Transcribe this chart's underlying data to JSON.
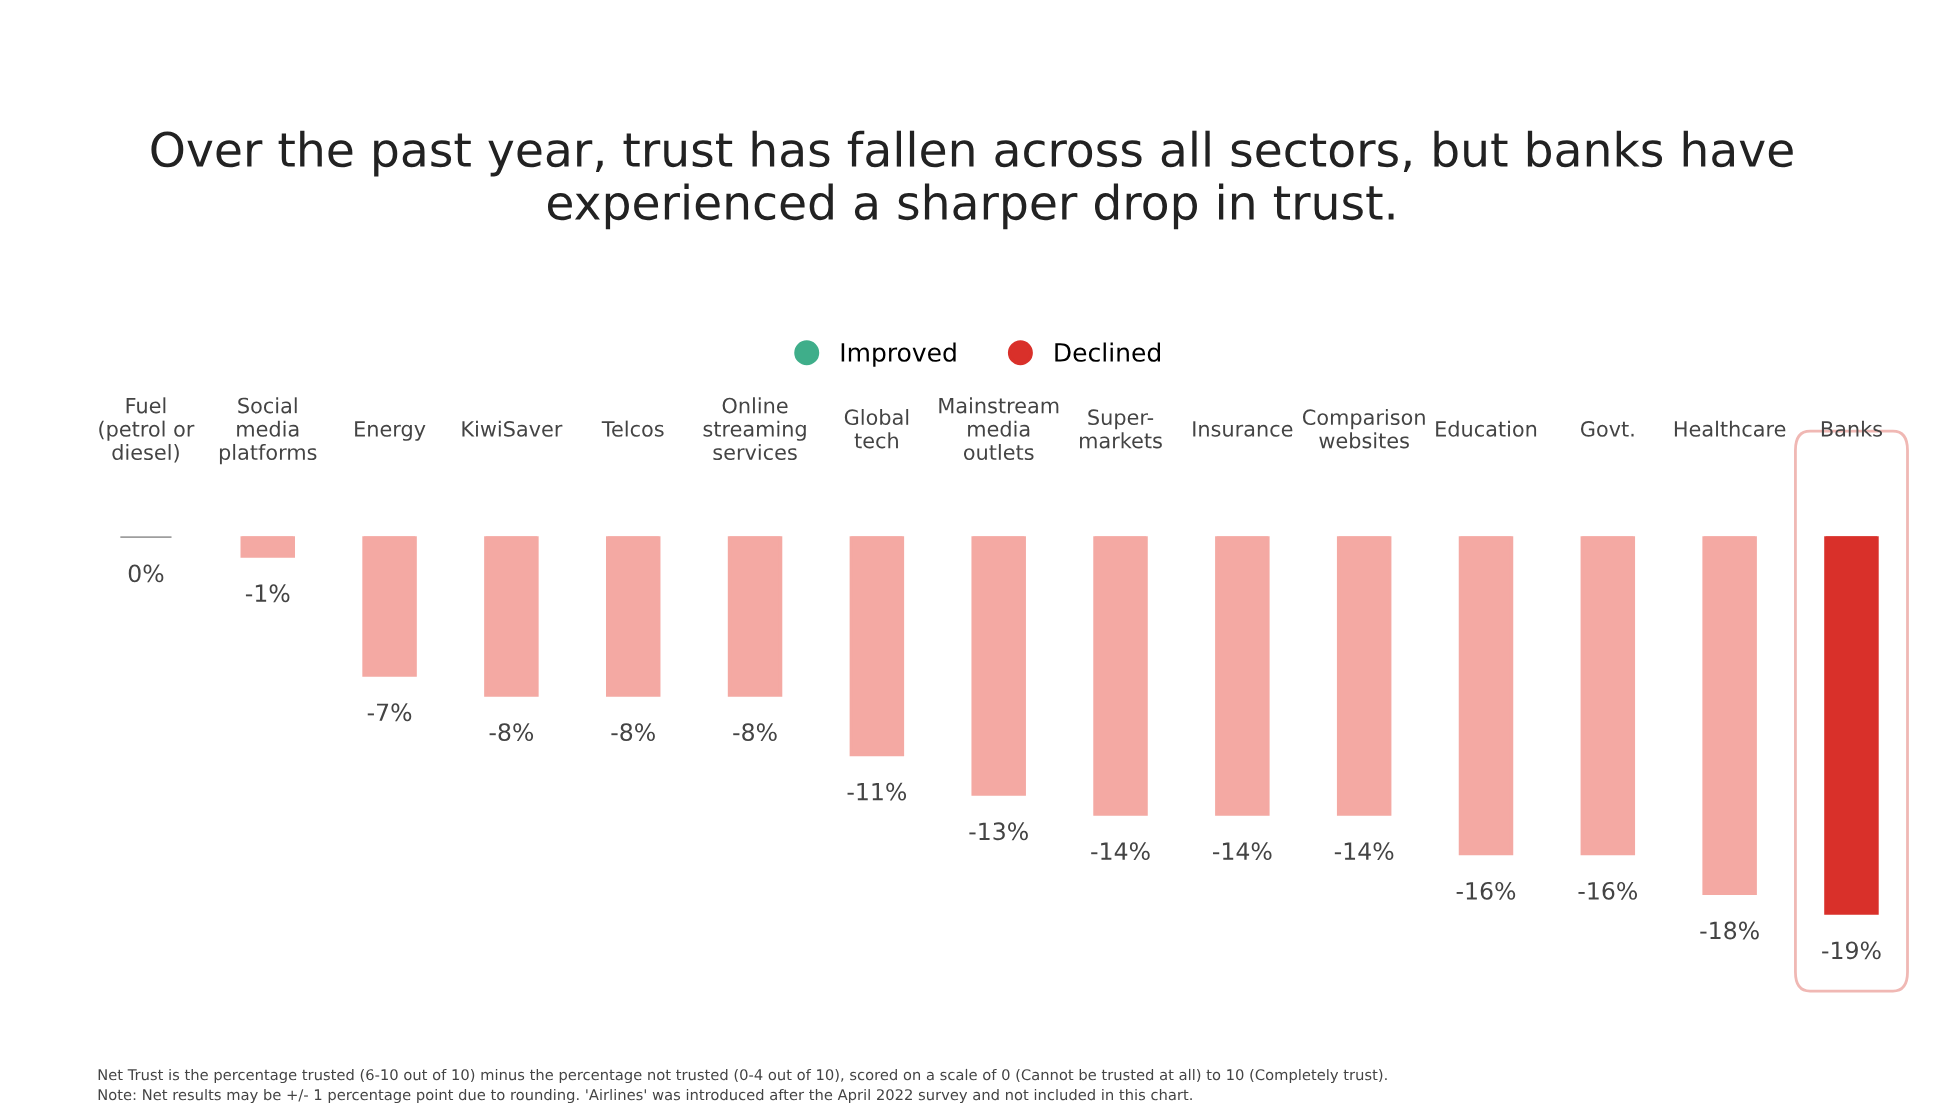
{
  "chart_data": {
    "type": "bar",
    "title": "Over the past year, trust has fallen across all sectors, but banks have\nexperienced a sharper drop in trust.",
    "categories": [
      "Fuel\n(petrol or\ndiesel)",
      "Social\nmedia\nplatforms",
      "Energy",
      "KiwiSaver",
      "Telcos",
      "Online\nstreaming\nservices",
      "Global\ntech",
      "Mainstream\nmedia\noutlets",
      "Super-\nmarkets",
      "Insurance",
      "Comparison\nwebsites",
      "Education",
      "Govt.",
      "Healthcare",
      "Banks"
    ],
    "series": [
      {
        "name": "Improved",
        "color": "#3fae8a",
        "values": [
          null,
          null,
          null,
          null,
          null,
          null,
          null,
          null,
          null,
          null,
          null,
          null,
          null,
          null,
          null
        ]
      },
      {
        "name": "Declined",
        "color": "#d9302a",
        "values": [
          0,
          -1,
          -7,
          -8,
          -8,
          -8,
          -11,
          -13,
          -14,
          -14,
          -14,
          -16,
          -16,
          -18,
          -19
        ],
        "colors": [
          "#9e9e9e",
          "#f4a9a3",
          "#f4a9a3",
          "#f4a9a3",
          "#f4a9a3",
          "#f4a9a3",
          "#f4a9a3",
          "#f4a9a3",
          "#f4a9a3",
          "#f4a9a3",
          "#f4a9a3",
          "#f4a9a3",
          "#f4a9a3",
          "#f4a9a3",
          "#d9302a"
        ],
        "value_labels": [
          "0%",
          "-1%",
          "-7%",
          "-8%",
          "-8%",
          "-8%",
          "-11%",
          "-13%",
          "-14%",
          "-14%",
          "-14%",
          "-16%",
          "-16%",
          "-18%",
          "-19%"
        ]
      }
    ],
    "legend": "top",
    "annotations": [
      "Net Trust is the percentage trusted (6-10 out of 10) minus the percentage not trusted (0-4 out of 10), scored on a scale of 0 (Cannot be trusted at all) to 10 (Completely trust).",
      "Note: Net results may be +/- 1 percentage point due to rounding. 'Airlines' was introduced after the April 2022 survey and not included in this chart."
    ]
  }
}
